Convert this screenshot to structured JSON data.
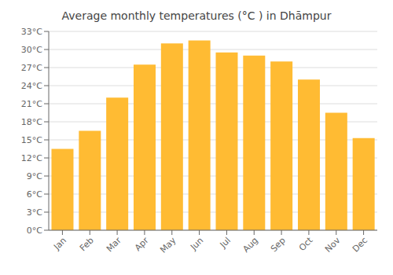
{
  "chart_data": {
    "type": "bar",
    "title": "Average monthly temperatures (°C ) in Dhāmpur",
    "categories": [
      "Jan",
      "Feb",
      "Mar",
      "Apr",
      "May",
      "Jun",
      "Jul",
      "Aug",
      "Sep",
      "Oct",
      "Nov",
      "Dec"
    ],
    "values": [
      13.5,
      16.5,
      22.0,
      27.5,
      31.0,
      31.5,
      29.5,
      29.0,
      28.0,
      25.0,
      19.5,
      15.3
    ],
    "color": "#FFBB33",
    "ylim": [
      0,
      33
    ],
    "yticks": [
      {
        "value": 0,
        "label": "0°C"
      },
      {
        "value": 3,
        "label": "3°C"
      },
      {
        "value": 6,
        "label": "6°C"
      },
      {
        "value": 9,
        "label": "9°C"
      },
      {
        "value": 12,
        "label": "12°C"
      },
      {
        "value": 15,
        "label": "15°C"
      },
      {
        "value": 18,
        "label": "18°C"
      },
      {
        "value": 21,
        "label": "21°C"
      },
      {
        "value": 24,
        "label": "24°C"
      },
      {
        "value": 27,
        "label": "27°C"
      },
      {
        "value": 30,
        "label": "30°C"
      },
      {
        "value": 33,
        "label": "33°C"
      }
    ],
    "grid": true
  }
}
